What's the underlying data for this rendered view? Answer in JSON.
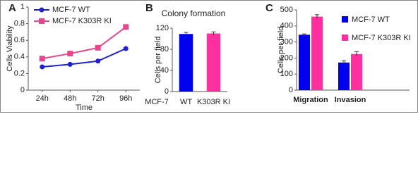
{
  "chart_data": [
    {
      "type": "line",
      "panel_label": "A",
      "ylabel": "Cells Viability",
      "xlabel": "Time",
      "categories": [
        "24h",
        "48h",
        "72h",
        "96h"
      ],
      "series": [
        {
          "name": "MCF-7 WT",
          "color": "#1f1fd0",
          "marker": "circle",
          "values": [
            0.28,
            0.31,
            0.35,
            0.5
          ]
        },
        {
          "name": "MCF-7 K303R KI",
          "color": "#e8468c",
          "marker": "square",
          "values": [
            0.38,
            0.44,
            0.51,
            0.76
          ]
        }
      ],
      "ylim": [
        0,
        1
      ],
      "yticks": [
        0,
        0.2,
        0.4,
        0.6,
        0.8,
        1
      ],
      "legend": "upper left"
    },
    {
      "type": "bar",
      "panel_label": "B",
      "title": "Colony formation",
      "ylabel": "Cells per field",
      "group_label": "MCF-7",
      "categories": [
        "WT",
        "K303R KI"
      ],
      "values": [
        109,
        110
      ],
      "errors": [
        3,
        3
      ],
      "colors": [
        "#0000ee",
        "#ff2fa0"
      ],
      "ylim": [
        0,
        120
      ],
      "yticks": [
        0,
        40,
        80,
        120
      ]
    },
    {
      "type": "grouped_bar",
      "panel_label": "C",
      "ylabel": "Cells per field",
      "categories": [
        "Migration",
        "Invasion"
      ],
      "series": [
        {
          "name": "MCF-7 WT",
          "color": "#0000ee",
          "values": [
            345,
            172
          ],
          "errors": [
            5,
            10
          ]
        },
        {
          "name": "MCF-7 K303R KI",
          "color": "#ff2fa0",
          "values": [
            458,
            225
          ],
          "errors": [
            12,
            15
          ]
        }
      ],
      "ylim": [
        0,
        500
      ],
      "yticks": [
        0,
        100,
        200,
        300,
        400,
        500
      ],
      "legend": "right"
    }
  ]
}
